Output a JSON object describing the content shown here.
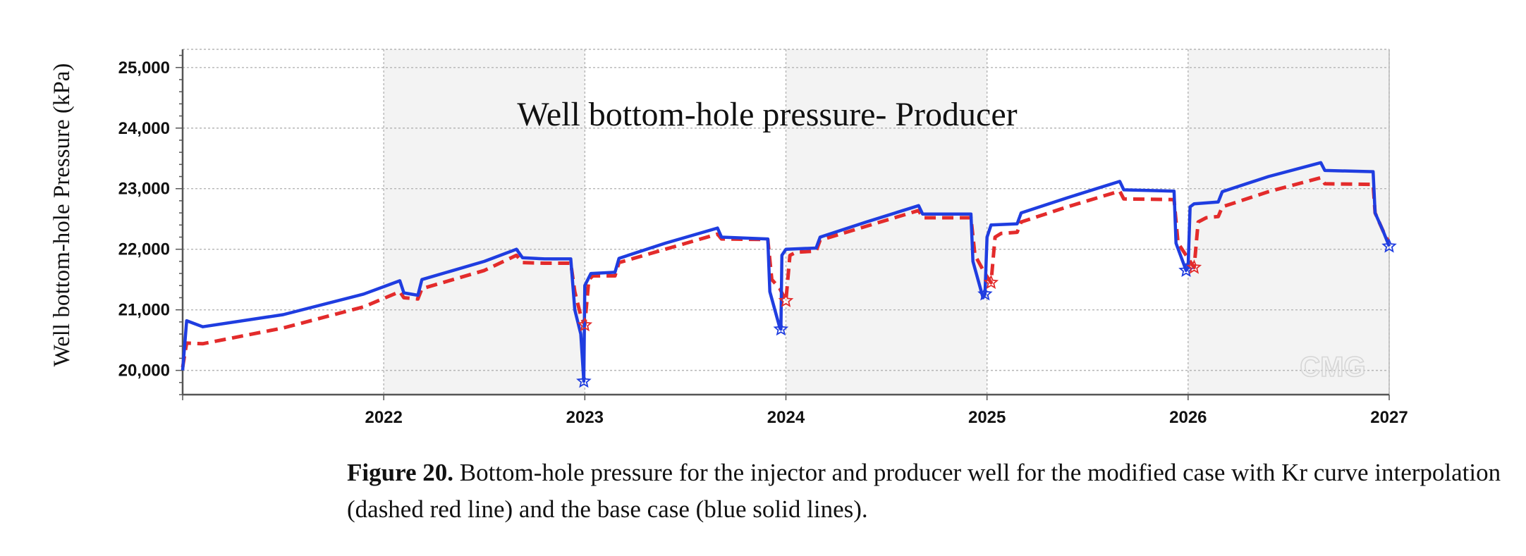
{
  "chart_data": {
    "type": "line",
    "title": "Well bottom-hole pressure- Producer",
    "ylabel": "Well bottom-hole Pressure (kPa)",
    "xlabel": "",
    "xlim": [
      2021.0,
      2027.0
    ],
    "ylim": [
      19600,
      25300
    ],
    "xticks": [
      2022,
      2023,
      2024,
      2025,
      2026,
      2027
    ],
    "xtick_labels": [
      "2022",
      "2023",
      "2024",
      "2025",
      "2026",
      "2027"
    ],
    "yticks": [
      20000,
      21000,
      22000,
      23000,
      24000,
      25000
    ],
    "ytick_labels": [
      "20,000",
      "21,000",
      "22,000",
      "23,000",
      "24,000",
      "25,000"
    ],
    "grid": true,
    "watermark": "CMG",
    "colors": {
      "base": "#1f3de0",
      "modified": "#e32b2b",
      "band": "#f3f3f3",
      "grid": "#b5b5b5"
    },
    "series": [
      {
        "name": "base case (blue solid lines)",
        "style": "solid",
        "points": [
          [
            2021.0,
            20000
          ],
          [
            2021.02,
            20820
          ],
          [
            2021.1,
            20720
          ],
          [
            2021.5,
            20920
          ],
          [
            2021.9,
            21260
          ],
          [
            2022.08,
            21480
          ],
          [
            2022.1,
            21280
          ],
          [
            2022.17,
            21240
          ],
          [
            2022.19,
            21500
          ],
          [
            2022.5,
            21800
          ],
          [
            2022.66,
            22000
          ],
          [
            2022.69,
            21860
          ],
          [
            2022.8,
            21840
          ],
          [
            2022.93,
            21840
          ],
          [
            2022.95,
            21000
          ],
          [
            2022.98,
            20600
          ],
          [
            2022.995,
            19820
          ],
          [
            2023.0,
            21400
          ],
          [
            2023.03,
            21600
          ],
          [
            2023.15,
            21620
          ],
          [
            2023.17,
            21850
          ],
          [
            2023.4,
            22100
          ],
          [
            2023.66,
            22350
          ],
          [
            2023.68,
            22200
          ],
          [
            2023.91,
            22170
          ],
          [
            2023.92,
            21300
          ],
          [
            2023.97,
            20700
          ],
          [
            2023.975,
            20680
          ],
          [
            2023.98,
            21900
          ],
          [
            2024.0,
            22000
          ],
          [
            2024.15,
            22020
          ],
          [
            2024.17,
            22200
          ],
          [
            2024.4,
            22450
          ],
          [
            2024.66,
            22720
          ],
          [
            2024.68,
            22580
          ],
          [
            2024.92,
            22580
          ],
          [
            2024.93,
            21800
          ],
          [
            2024.98,
            21200
          ],
          [
            2024.99,
            21260
          ],
          [
            2025.0,
            22200
          ],
          [
            2025.02,
            22400
          ],
          [
            2025.15,
            22420
          ],
          [
            2025.17,
            22600
          ],
          [
            2025.4,
            22850
          ],
          [
            2025.66,
            23120
          ],
          [
            2025.68,
            22980
          ],
          [
            2025.93,
            22960
          ],
          [
            2025.94,
            22100
          ],
          [
            2025.99,
            21650
          ],
          [
            2026.0,
            21700
          ],
          [
            2026.01,
            22700
          ],
          [
            2026.03,
            22750
          ],
          [
            2026.15,
            22780
          ],
          [
            2026.17,
            22950
          ],
          [
            2026.4,
            23200
          ],
          [
            2026.66,
            23430
          ],
          [
            2026.68,
            23300
          ],
          [
            2026.92,
            23280
          ],
          [
            2026.93,
            22600
          ],
          [
            2026.97,
            22300
          ],
          [
            2027.0,
            22050
          ]
        ]
      },
      {
        "name": "modified case with Kr curve interpolation (dashed red line)",
        "style": "dashed",
        "points": [
          [
            2021.0,
            20050
          ],
          [
            2021.02,
            20450
          ],
          [
            2021.1,
            20440
          ],
          [
            2021.5,
            20700
          ],
          [
            2021.9,
            21050
          ],
          [
            2022.08,
            21300
          ],
          [
            2022.1,
            21200
          ],
          [
            2022.17,
            21180
          ],
          [
            2022.19,
            21350
          ],
          [
            2022.5,
            21650
          ],
          [
            2022.66,
            21900
          ],
          [
            2022.69,
            21780
          ],
          [
            2022.8,
            21770
          ],
          [
            2022.93,
            21770
          ],
          [
            2022.95,
            21300
          ],
          [
            2022.98,
            20900
          ],
          [
            2023.0,
            20750
          ],
          [
            2023.02,
            21500
          ],
          [
            2023.04,
            21560
          ],
          [
            2023.15,
            21560
          ],
          [
            2023.17,
            21780
          ],
          [
            2023.4,
            22000
          ],
          [
            2023.66,
            22250
          ],
          [
            2023.68,
            22170
          ],
          [
            2023.91,
            22160
          ],
          [
            2023.93,
            21500
          ],
          [
            2023.97,
            21350
          ],
          [
            2024.0,
            21150
          ],
          [
            2024.02,
            21900
          ],
          [
            2024.05,
            21950
          ],
          [
            2024.15,
            21970
          ],
          [
            2024.17,
            22150
          ],
          [
            2024.4,
            22380
          ],
          [
            2024.66,
            22640
          ],
          [
            2024.68,
            22520
          ],
          [
            2024.92,
            22520
          ],
          [
            2024.94,
            21900
          ],
          [
            2024.99,
            21600
          ],
          [
            2025.02,
            21450
          ],
          [
            2025.04,
            22200
          ],
          [
            2025.07,
            22260
          ],
          [
            2025.15,
            22280
          ],
          [
            2025.17,
            22450
          ],
          [
            2025.4,
            22700
          ],
          [
            2025.66,
            22960
          ],
          [
            2025.68,
            22830
          ],
          [
            2025.93,
            22820
          ],
          [
            2025.95,
            22100
          ],
          [
            2026.0,
            21850
          ],
          [
            2026.03,
            21700
          ],
          [
            2026.05,
            22450
          ],
          [
            2026.09,
            22520
          ],
          [
            2026.15,
            22540
          ],
          [
            2026.17,
            22700
          ],
          [
            2026.4,
            22950
          ],
          [
            2026.66,
            23180
          ],
          [
            2026.68,
            23080
          ],
          [
            2026.92,
            23070
          ],
          [
            2026.93,
            22600
          ],
          [
            2026.97,
            22300
          ],
          [
            2027.0,
            22100
          ]
        ]
      }
    ],
    "markers": [
      {
        "series": "base",
        "points": [
          [
            2022.995,
            19820
          ],
          [
            2023.975,
            20680
          ],
          [
            2024.99,
            21260
          ],
          [
            2025.99,
            21650
          ],
          [
            2027.0,
            22050
          ]
        ]
      },
      {
        "series": "modified",
        "points": [
          [
            2023.0,
            20750
          ],
          [
            2024.0,
            21150
          ],
          [
            2025.02,
            21450
          ],
          [
            2026.03,
            21700
          ]
        ]
      }
    ]
  },
  "caption": {
    "label": "Figure 20.",
    "text": "Bottom-hole pressure for the injector and producer well for the modified case with Kr curve interpolation (dashed red line) and the base case (blue solid lines)."
  }
}
